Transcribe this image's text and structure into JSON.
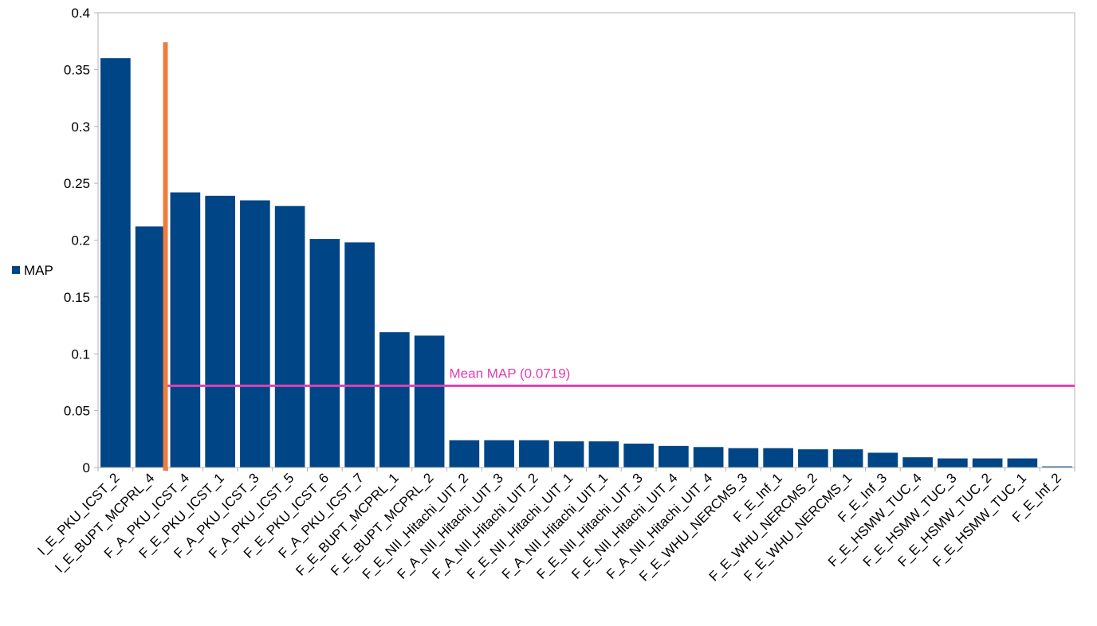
{
  "chart_data": {
    "type": "bar",
    "categories": [
      "I_E_PKU_ICST_2",
      "I_E_BUPT_MCPRL_4",
      "F_A_PKU_ICST_4",
      "F_E_PKU_ICST_1",
      "F_A_PKU_ICST_3",
      "F_A_PKU_ICST_5",
      "F_E_PKU_ICST_6",
      "F_A_PKU_ICST_7",
      "F_E_BUPT_MCPRL_1",
      "F_E_BUPT_MCPRL_2",
      "F_E_NII_Hitachi_UIT_2",
      "F_A_NII_Hitachi_UIT_3",
      "F_A_NII_Hitachi_UIT_2",
      "F_E_NII_Hitachi_UIT_1",
      "F_A_NII_Hitachi_UIT_1",
      "F_E_NII_Hitachi_UIT_3",
      "F_E_NII_Hitachi_UIT_4",
      "F_A_NII_Hitachi_UIT_4",
      "F_E_WHU_NERCMS_3",
      "F_E_Inf_1",
      "F_E_WHU_NERCMS_2",
      "F_E_WHU_NERCMS_1",
      "F_E_Inf_3",
      "F_E_HSMW_TUC_4",
      "F_E_HSMW_TUC_3",
      "F_E_HSMW_TUC_2",
      "F_E_HSMW_TUC_1",
      "F_E_Inf_2"
    ],
    "series": [
      {
        "name": "MAP",
        "color": "#004586",
        "values": [
          0.36,
          0.212,
          0.242,
          0.239,
          0.235,
          0.23,
          0.201,
          0.198,
          0.119,
          0.116,
          0.024,
          0.024,
          0.024,
          0.023,
          0.023,
          0.021,
          0.019,
          0.018,
          0.017,
          0.017,
          0.016,
          0.016,
          0.013,
          0.009,
          0.008,
          0.008,
          0.008,
          0.001
        ]
      }
    ],
    "y_ticks": [
      "0",
      "0.05",
      "0.1",
      "0.15",
      "0.2",
      "0.25",
      "0.3",
      "0.35",
      "0.4"
    ],
    "ylim": [
      0,
      0.4
    ],
    "legend": {
      "label": "MAP",
      "position": "left"
    },
    "mean_line": {
      "label": "Mean MAP (0.0719)",
      "value": 0.0719,
      "color": "#e040b0"
    },
    "separator_line": {
      "after_category_index": 1,
      "color": "#f07c3c"
    },
    "grid": false
  }
}
